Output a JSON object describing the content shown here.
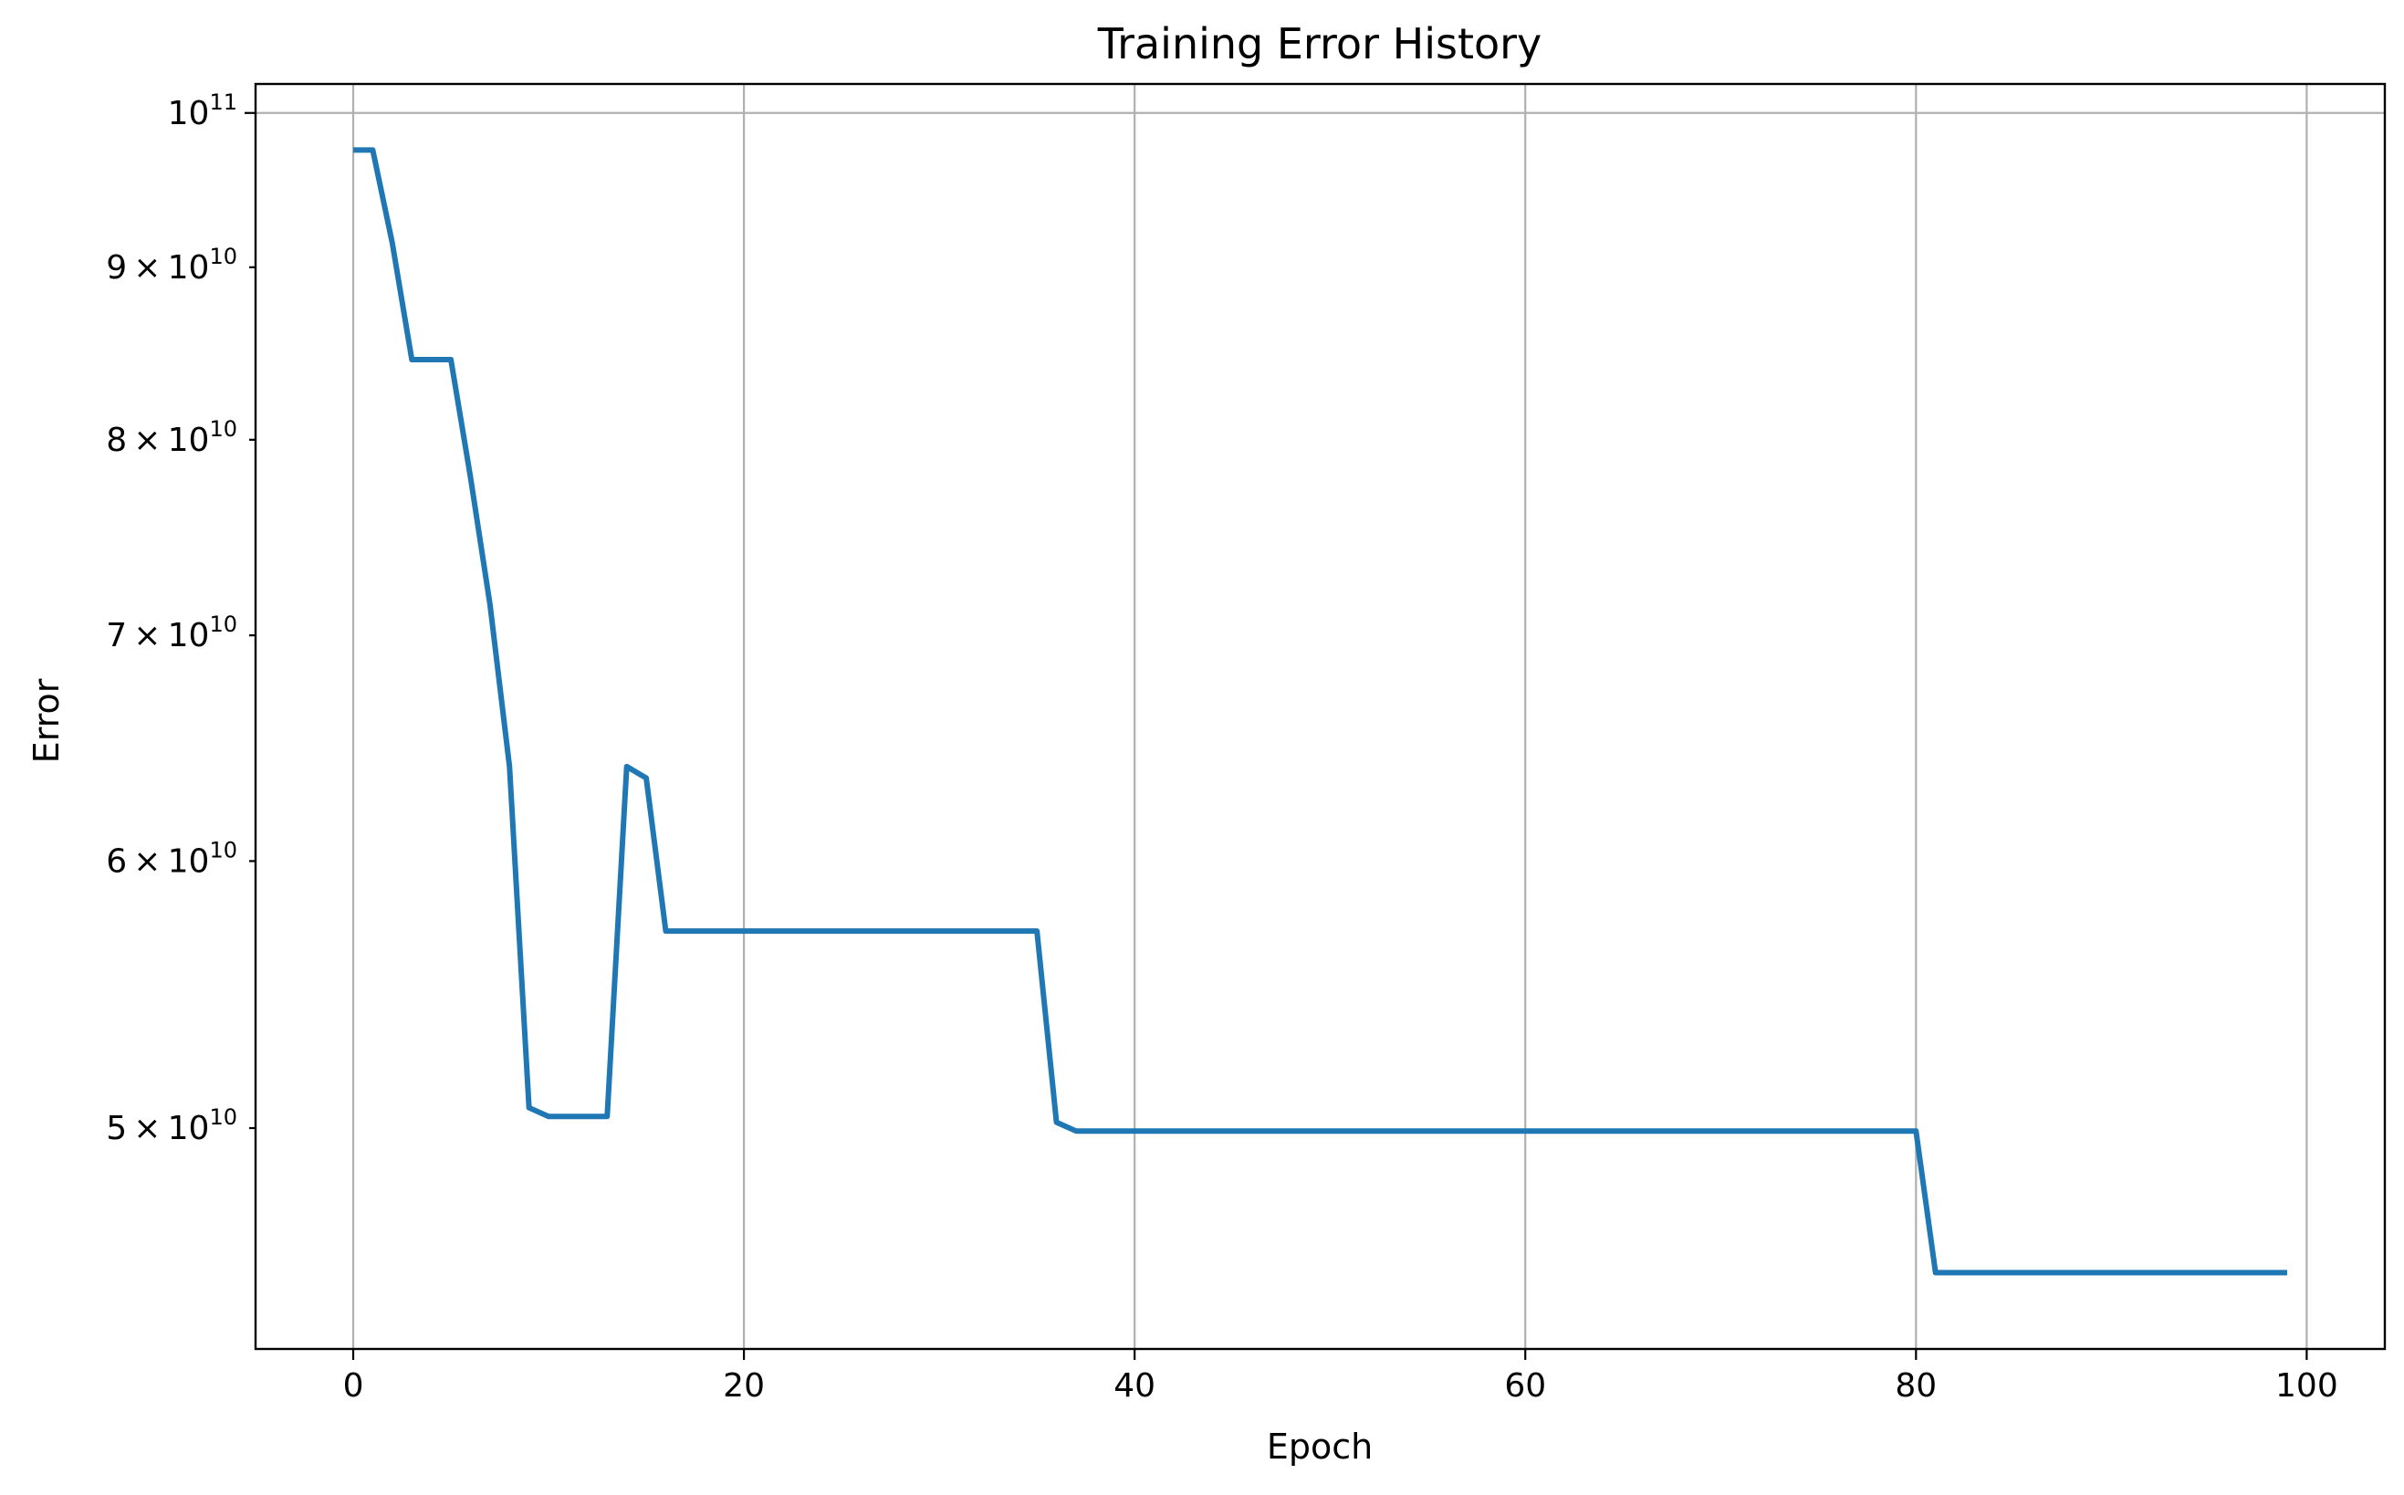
{
  "chart_data": {
    "type": "line",
    "title": "Training Error History",
    "xlabel": "Epoch",
    "ylabel": "Error",
    "xlim": [
      -5,
      104
    ],
    "ylim": [
      43000000000,
      102000000000
    ],
    "yscale": "log",
    "grid": true,
    "x_ticks": [
      {
        "value": 0,
        "label": "0"
      },
      {
        "value": 20,
        "label": "20"
      },
      {
        "value": 40,
        "label": "40"
      },
      {
        "value": 60,
        "label": "60"
      },
      {
        "value": 80,
        "label": "80"
      },
      {
        "value": 100,
        "label": "100"
      }
    ],
    "y_ticks": [
      {
        "value": 50000000000,
        "mantissa": "5",
        "times": "×",
        "base": "10",
        "exp": "10"
      },
      {
        "value": 60000000000,
        "mantissa": "6",
        "times": "×",
        "base": "10",
        "exp": "10"
      },
      {
        "value": 70000000000,
        "mantissa": "7",
        "times": "×",
        "base": "10",
        "exp": "10"
      },
      {
        "value": 80000000000,
        "mantissa": "8",
        "times": "×",
        "base": "10",
        "exp": "10"
      },
      {
        "value": 90000000000,
        "mantissa": "9",
        "times": "×",
        "base": "10",
        "exp": "10"
      },
      {
        "value": 100000000000,
        "mantissa": "",
        "times": "",
        "base": "10",
        "exp": "11"
      }
    ],
    "series": [
      {
        "color": "#1f77b4",
        "points": [
          [
            0,
            97500000000
          ],
          [
            1,
            97500000000
          ],
          [
            2,
            91500000000
          ],
          [
            3,
            84500000000
          ],
          [
            4,
            84500000000
          ],
          [
            5,
            84500000000
          ],
          [
            6,
            78000000000
          ],
          [
            7,
            71500000000
          ],
          [
            8,
            64000000000
          ],
          [
            9,
            50700000000
          ],
          [
            10,
            50400000000
          ],
          [
            11,
            50400000000
          ],
          [
            12,
            50400000000
          ],
          [
            13,
            50400000000
          ],
          [
            14,
            64000000000
          ],
          [
            15,
            63500000000
          ],
          [
            16,
            57200000000
          ],
          [
            35,
            57200000000
          ],
          [
            36,
            50200000000
          ],
          [
            37,
            49900000000
          ],
          [
            80,
            49900000000
          ],
          [
            81,
            45300000000
          ],
          [
            99,
            45300000000
          ]
        ]
      }
    ]
  }
}
